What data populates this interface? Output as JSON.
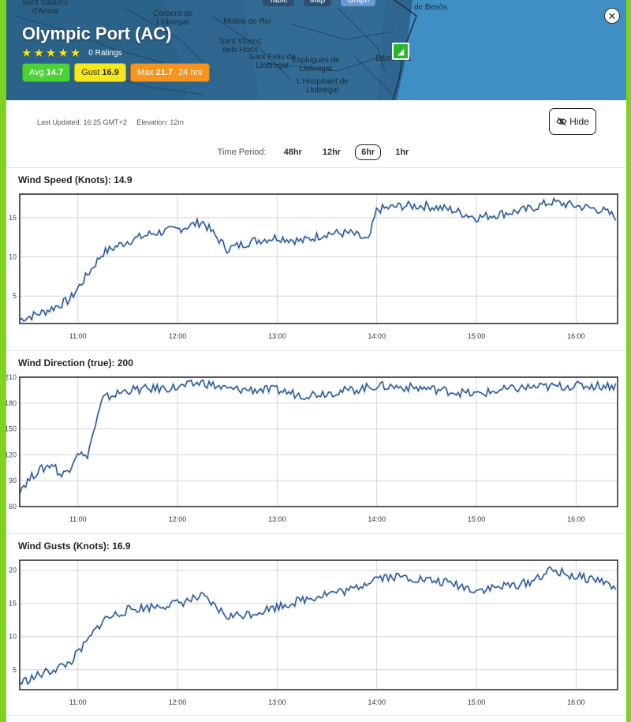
{
  "top_tabs": [
    "Table",
    "Map",
    "Graph"
  ],
  "map_labels": [
    {
      "text": "Sant Sadurní\nd'Anoia"
    },
    {
      "text": "Corbera de\nLlobregat"
    },
    {
      "text": "Molins de Rei"
    },
    {
      "text": "Sant Vicenç\ndels Horts"
    },
    {
      "text": "Sant Feliu de\nLlobregat"
    },
    {
      "text": "Esplugues de\nLlobregat"
    },
    {
      "text": "L'Hospitalet de\nLlobregat"
    },
    {
      "text": "Barcelona"
    },
    {
      "text": "de Besòs"
    }
  ],
  "station": {
    "title": "Olympic Port (AC)",
    "stars": 5,
    "ratings_text": "0 Ratings",
    "avg_label": "Avg",
    "avg_value": "14.7",
    "gust_label": "Gust",
    "gust_value": "16.9",
    "max_label": "Max",
    "max_value": "21.7",
    "max_period": "24 hrs",
    "last_updated": "Last Updated: 16:25 GMT+2",
    "elevation": "Elevation: 12m",
    "hide_label": "Hide"
  },
  "colors": {
    "avg": "#4cd137",
    "gust": "#f5e71c",
    "max": "#f7941d",
    "line": "#1f4e8c"
  },
  "time_period": {
    "label": "Time Period:",
    "options": [
      "48hr",
      "12hr",
      "6hr",
      "1hr"
    ],
    "selected": "6hr"
  },
  "chart_data": [
    {
      "type": "line",
      "title": "Wind Speed (Knots): 14.9",
      "x_ticks": [
        "11:00",
        "12:00",
        "13:00",
        "14:00",
        "15:00",
        "16:00"
      ],
      "x_range": [
        "10:25",
        "16:25"
      ],
      "y_ticks": [
        5,
        10,
        15
      ],
      "ylim": [
        1.5,
        18
      ],
      "series": [
        {
          "x": [
            "10:25",
            "10:40",
            "10:55",
            "11:05",
            "11:15",
            "11:30",
            "11:45",
            "12:00",
            "12:15",
            "12:30",
            "12:45",
            "13:00",
            "13:15",
            "13:30",
            "13:45",
            "13:55",
            "14:00",
            "14:15",
            "14:30",
            "14:45",
            "15:00",
            "15:15",
            "15:30",
            "15:45",
            "16:00",
            "16:15",
            "16:25"
          ],
          "values": [
            2.0,
            3.0,
            4.5,
            7.5,
            10.5,
            12.0,
            13.0,
            13.5,
            14.5,
            11.0,
            12.0,
            12.5,
            12.0,
            13.0,
            13.0,
            12.0,
            16.0,
            16.5,
            16.5,
            16.0,
            15.0,
            15.5,
            16.0,
            17.0,
            16.5,
            16.0,
            15.0
          ]
        }
      ]
    },
    {
      "type": "line",
      "title": "Wind Direction (true): 200",
      "x_ticks": [
        "11:00",
        "12:00",
        "13:00",
        "14:00",
        "15:00",
        "16:00"
      ],
      "x_range": [
        "10:25",
        "16:25"
      ],
      "y_ticks": [
        60,
        90,
        120,
        150,
        180,
        210
      ],
      "ylim": [
        60,
        210
      ],
      "series": [
        {
          "x": [
            "10:25",
            "10:35",
            "10:45",
            "10:50",
            "10:55",
            "11:00",
            "11:05",
            "11:10",
            "11:15",
            "11:30",
            "12:00",
            "12:15",
            "12:30",
            "13:00",
            "13:15",
            "13:30",
            "13:45",
            "14:00",
            "14:30",
            "15:00",
            "15:15",
            "15:30",
            "16:00",
            "16:25"
          ],
          "values": [
            80,
            100,
            110,
            95,
            105,
            125,
            115,
            150,
            185,
            195,
            198,
            204,
            196,
            195,
            189,
            192,
            195,
            200,
            197,
            190,
            195,
            198,
            200,
            200
          ]
        }
      ]
    },
    {
      "type": "line",
      "title": "Wind Gusts (Knots): 16.9",
      "x_ticks": [
        "11:00",
        "12:00",
        "13:00",
        "14:00",
        "15:00",
        "16:00"
      ],
      "x_range": [
        "10:25",
        "16:25"
      ],
      "y_ticks": [
        5,
        10,
        15,
        20
      ],
      "ylim": [
        2,
        21.5
      ],
      "series": [
        {
          "x": [
            "10:25",
            "10:40",
            "10:55",
            "11:05",
            "11:15",
            "11:30",
            "11:45",
            "12:00",
            "12:15",
            "12:30",
            "12:45",
            "13:00",
            "13:15",
            "13:30",
            "13:45",
            "14:00",
            "14:15",
            "14:30",
            "14:45",
            "15:00",
            "15:15",
            "15:30",
            "15:45",
            "16:00",
            "16:15",
            "16:25"
          ],
          "values": [
            3.0,
            4.5,
            6.0,
            9.0,
            12.5,
            14.0,
            14.5,
            15.0,
            16.0,
            13.0,
            13.5,
            14.5,
            15.5,
            16.5,
            17.0,
            19.0,
            19.0,
            18.5,
            18.0,
            17.0,
            17.5,
            18.0,
            20.0,
            19.0,
            18.5,
            17.0
          ]
        }
      ]
    }
  ]
}
